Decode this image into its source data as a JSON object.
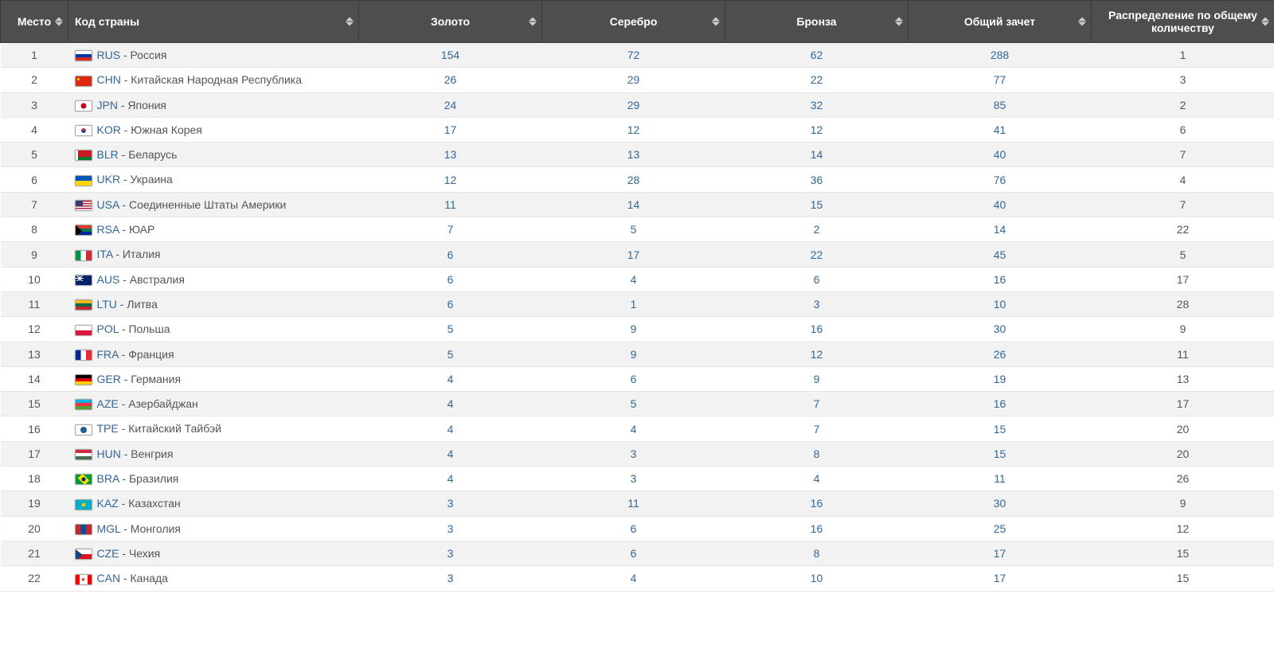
{
  "colors": {
    "header_bg": "#4e4e4e",
    "header_text": "#ffffff",
    "row_odd_bg": "#f2f2f2",
    "row_even_bg": "#ffffff",
    "link_color": "#336699",
    "text_color": "#555555",
    "border_color": "#e5e5e5"
  },
  "typography": {
    "font_family": "Arial, Helvetica, sans-serif",
    "header_font_size_pt": 11,
    "cell_font_size_pt": 11
  },
  "columns": [
    {
      "key": "rank",
      "label": "Место",
      "sortable": true,
      "align": "center"
    },
    {
      "key": "country",
      "label": "Код страны",
      "sortable": true,
      "align": "left"
    },
    {
      "key": "gold",
      "label": "Золото",
      "sortable": true,
      "align": "center"
    },
    {
      "key": "silver",
      "label": "Серебро",
      "sortable": true,
      "align": "center"
    },
    {
      "key": "bronze",
      "label": "Бронза",
      "sortable": true,
      "align": "center"
    },
    {
      "key": "total",
      "label": "Общий зачет",
      "sortable": true,
      "align": "center"
    },
    {
      "key": "dist",
      "label": "Распределение по общему количеству",
      "sortable": true,
      "align": "center"
    }
  ],
  "rows": [
    {
      "rank": 1,
      "code": "RUS",
      "name": "Россия",
      "flag": "rus",
      "gold": 154,
      "silver": 72,
      "bronze": 62,
      "total": 288,
      "dist": 1
    },
    {
      "rank": 2,
      "code": "CHN",
      "name": "Китайская Народная Республика",
      "flag": "chn",
      "gold": 26,
      "silver": 29,
      "bronze": 22,
      "total": 77,
      "dist": 3
    },
    {
      "rank": 3,
      "code": "JPN",
      "name": "Япония",
      "flag": "jpn",
      "gold": 24,
      "silver": 29,
      "bronze": 32,
      "total": 85,
      "dist": 2
    },
    {
      "rank": 4,
      "code": "KOR",
      "name": "Южная Корея",
      "flag": "kor",
      "gold": 17,
      "silver": 12,
      "bronze": 12,
      "total": 41,
      "dist": 6
    },
    {
      "rank": 5,
      "code": "BLR",
      "name": "Беларусь",
      "flag": "blr",
      "gold": 13,
      "silver": 13,
      "bronze": 14,
      "total": 40,
      "dist": 7
    },
    {
      "rank": 6,
      "code": "UKR",
      "name": "Украина",
      "flag": "ukr",
      "gold": 12,
      "silver": 28,
      "bronze": 36,
      "total": 76,
      "dist": 4
    },
    {
      "rank": 7,
      "code": "USA",
      "name": "Соединенные Штаты Америки",
      "flag": "usa",
      "gold": 11,
      "silver": 14,
      "bronze": 15,
      "total": 40,
      "dist": 7
    },
    {
      "rank": 8,
      "code": "RSA",
      "name": "ЮАР",
      "flag": "rsa",
      "gold": 7,
      "silver": 5,
      "bronze": 2,
      "total": 14,
      "dist": 22
    },
    {
      "rank": 9,
      "code": "ITA",
      "name": "Италия",
      "flag": "ita",
      "gold": 6,
      "silver": 17,
      "bronze": 22,
      "total": 45,
      "dist": 5
    },
    {
      "rank": 10,
      "code": "AUS",
      "name": "Австралия",
      "flag": "aus",
      "gold": 6,
      "silver": 4,
      "bronze": 6,
      "total": 16,
      "dist": 17
    },
    {
      "rank": 11,
      "code": "LTU",
      "name": "Литва",
      "flag": "ltu",
      "gold": 6,
      "silver": 1,
      "bronze": 3,
      "total": 10,
      "dist": 28
    },
    {
      "rank": 12,
      "code": "POL",
      "name": "Польша",
      "flag": "pol",
      "gold": 5,
      "silver": 9,
      "bronze": 16,
      "total": 30,
      "dist": 9
    },
    {
      "rank": 13,
      "code": "FRA",
      "name": "Франция",
      "flag": "fra",
      "gold": 5,
      "silver": 9,
      "bronze": 12,
      "total": 26,
      "dist": 11
    },
    {
      "rank": 14,
      "code": "GER",
      "name": "Германия",
      "flag": "ger",
      "gold": 4,
      "silver": 6,
      "bronze": 9,
      "total": 19,
      "dist": 13
    },
    {
      "rank": 15,
      "code": "AZE",
      "name": "Азербайджан",
      "flag": "aze",
      "gold": 4,
      "silver": 5,
      "bronze": 7,
      "total": 16,
      "dist": 17
    },
    {
      "rank": 16,
      "code": "TPE",
      "name": "Китайский Тайбэй",
      "flag": "tpe",
      "gold": 4,
      "silver": 4,
      "bronze": 7,
      "total": 15,
      "dist": 20
    },
    {
      "rank": 17,
      "code": "HUN",
      "name": "Венгрия",
      "flag": "hun",
      "gold": 4,
      "silver": 3,
      "bronze": 8,
      "total": 15,
      "dist": 20
    },
    {
      "rank": 18,
      "code": "BRA",
      "name": "Бразилия",
      "flag": "bra",
      "gold": 4,
      "silver": 3,
      "bronze": 4,
      "total": 11,
      "dist": 26
    },
    {
      "rank": 19,
      "code": "KAZ",
      "name": "Казахстан",
      "flag": "kaz",
      "gold": 3,
      "silver": 11,
      "bronze": 16,
      "total": 30,
      "dist": 9
    },
    {
      "rank": 20,
      "code": "MGL",
      "name": "Монголия",
      "flag": "mgl",
      "gold": 3,
      "silver": 6,
      "bronze": 16,
      "total": 25,
      "dist": 12
    },
    {
      "rank": 21,
      "code": "CZE",
      "name": "Чехия",
      "flag": "cze",
      "gold": 3,
      "silver": 6,
      "bronze": 8,
      "total": 17,
      "dist": 15
    },
    {
      "rank": 22,
      "code": "CAN",
      "name": "Канада",
      "flag": "can",
      "gold": 3,
      "silver": 4,
      "bronze": 10,
      "total": 17,
      "dist": 15
    }
  ]
}
